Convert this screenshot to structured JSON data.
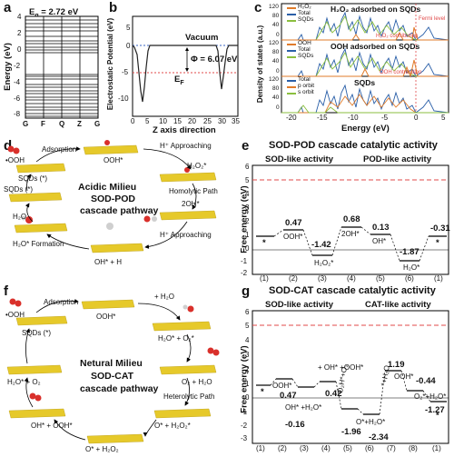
{
  "labels": {
    "a": "a",
    "b": "b",
    "c": "c",
    "d": "d",
    "e": "e",
    "f": "f",
    "g": "g"
  },
  "panel_a": {
    "gap": "E",
    "gap_sub": "g",
    "gap_value": " = 2.72 eV",
    "ylabel": "Energy (eV)",
    "yticks": [
      "4",
      "2",
      "0",
      "-2",
      "-4",
      "-6",
      "-8"
    ],
    "xticks": [
      "G",
      "F",
      "Q",
      "Z",
      "G"
    ]
  },
  "panel_b": {
    "ylabel": "Electrostatic Potential (eV)",
    "xlabel": "Z axis direction",
    "yticks": [
      "5",
      "0",
      "-5",
      "-10"
    ],
    "xticks": [
      "0",
      "5",
      "10",
      "15",
      "20",
      "25",
      "30",
      "35"
    ],
    "vacuum": "Vacuum",
    "phi": "Φ = 6.07 eV",
    "ef": "E",
    "ef_sub": "F"
  },
  "panel_c": {
    "ylabel": "Density of states (a.u.)",
    "xlabel": "Energy (eV)",
    "xticks": [
      "-20",
      "-15",
      "-10",
      "-5",
      "0",
      "5"
    ],
    "subpanels": [
      {
        "title": "H₂O₂ adsorbed on SQDs",
        "legend": [
          "H₂O₂",
          "Total",
          "SQDs"
        ],
        "colors": [
          "#e07b2a",
          "#2a5fa8",
          "#8bbf3f"
        ],
        "yticks": [
          "120",
          "80",
          "40",
          "0"
        ]
      },
      {
        "title": "OOH adsorbed on SQDs",
        "legend": [
          "OOH",
          "Total",
          "SQDs"
        ],
        "colors": [
          "#e07b2a",
          "#2a5fa8",
          "#8bbf3f"
        ],
        "yticks": [
          "120",
          "80",
          "40",
          "0"
        ]
      },
      {
        "title": "SQDs",
        "legend": [
          "Total",
          "p orbit",
          "s orbit"
        ],
        "colors": [
          "#2a5fa8",
          "#e07b2a",
          "#8bbf3f"
        ],
        "yticks": [
          "120",
          "80",
          "40",
          "0"
        ]
      }
    ],
    "fermi": "Fermi level",
    "h2o2_contrib": "H₂O₂ contribution",
    "ooh_contrib": "OOH contribution"
  },
  "panel_d": {
    "center_lines": [
      "Acidic Milieu",
      "SOD-POD",
      "cascade pathway"
    ],
    "labels": [
      "Adsorption",
      "H⁺ Approaching",
      "•OOH",
      "SQDs (*)",
      "OOH*",
      "H₂O₂*",
      "Homolytic Path",
      "2OH*",
      "SQDs (*)",
      "H₂O",
      "H⁺ Approaching",
      "H₂O* Formation",
      "OH* + H"
    ]
  },
  "panel_e": {
    "title": "SOD-POD cascade catalytic activity",
    "sod": "SOD-like activity",
    "pod": "POD-like activity",
    "ylabel": "Free energy (eV)",
    "yticks": [
      "6",
      "5",
      "4",
      "3",
      "2",
      "1",
      "0",
      "-1",
      "-2"
    ],
    "steps": [
      "(1)",
      "(2)",
      "(3)",
      "(4)",
      "(5)",
      "(6)",
      "(1)"
    ],
    "values": [
      "0.47",
      "-1.42",
      "0.68",
      "0.13",
      "-1.87",
      "-0.31"
    ],
    "species": [
      "*",
      "OOH*",
      "H₂O₂*",
      "2OH*",
      "OH*",
      "H₂O*",
      "*"
    ]
  },
  "panel_f": {
    "center_lines": [
      "Netural Milieu",
      "SOD-CAT",
      "cascade pathway"
    ],
    "labels": [
      "Adsorption",
      "+ H₂O",
      "•OOH",
      "SQDs (*)",
      "OOH*",
      "H₂O* + O₂",
      "H₂O* + O₂*",
      "O₂ + H₂O",
      "Heterolytic Path",
      "OH* + OOH*",
      "O* + H₂O₂*",
      "O* + H₂O₂"
    ]
  },
  "panel_g": {
    "title": "SOD-CAT cascade catalytic activity",
    "sod": "SOD-like activity",
    "cat": "CAT-like activity",
    "ylabel": "Free energy (eV)",
    "yticks": [
      "6",
      "5",
      "4",
      "3",
      "2",
      "1",
      "0",
      "-1",
      "-2",
      "-3"
    ],
    "steps": [
      "(1)",
      "(2)",
      "(3)",
      "(4)",
      "(5)",
      "(6)",
      "(7)",
      "(8)",
      "(1)"
    ],
    "values": [
      "0.47",
      "-0.16",
      "0.42",
      "-1.96",
      "-2.34",
      "1.19",
      "-0.44",
      "-1.27"
    ],
    "species": [
      "*",
      "OOH*",
      "OH* +H₂O*",
      "+ OH* +OOH*",
      "O₂H*+O₂",
      "O*+H₂O*",
      "*+H₂O",
      "OOH*",
      "O₂*+H₂O*",
      "*"
    ]
  }
}
